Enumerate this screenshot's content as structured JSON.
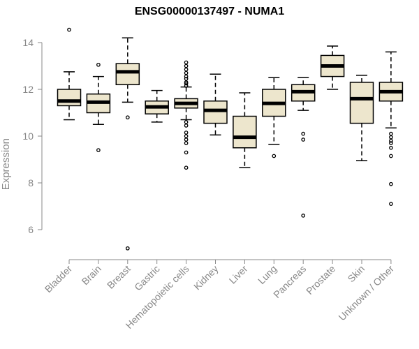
{
  "chart_data": {
    "type": "box",
    "title": "ENSG00000137497 - NUMA1",
    "xlabel": "",
    "ylabel": "Expression",
    "ylim": [
      5,
      14.7
    ],
    "yticks": [
      6,
      8,
      10,
      12,
      14
    ],
    "box_fill": "#ede6cd",
    "categories": [
      "Bladder",
      "Brain",
      "Breast",
      "Gastric",
      "Hematopoietic cells",
      "Kidney",
      "Liver",
      "Lung",
      "Pancreas",
      "Prostate",
      "Skin",
      "Unknown / Other"
    ],
    "boxes": [
      {
        "category": "Bladder",
        "whisker_low": 10.7,
        "q1": 11.3,
        "median": 11.5,
        "q3": 12.0,
        "whisker_high": 12.75,
        "outliers": [
          14.55
        ]
      },
      {
        "category": "Brain",
        "whisker_low": 10.5,
        "q1": 11.0,
        "median": 11.45,
        "q3": 11.8,
        "whisker_high": 12.55,
        "outliers": [
          13.05,
          9.4
        ]
      },
      {
        "category": "Breast",
        "whisker_low": 11.45,
        "q1": 12.2,
        "median": 12.75,
        "q3": 13.1,
        "whisker_high": 14.2,
        "outliers": [
          10.8,
          5.2
        ]
      },
      {
        "category": "Gastric",
        "whisker_low": 10.6,
        "q1": 10.95,
        "median": 11.25,
        "q3": 11.5,
        "whisker_high": 11.95,
        "outliers": []
      },
      {
        "category": "Hematopoietic cells",
        "whisker_low": 10.7,
        "q1": 11.2,
        "median": 11.4,
        "q3": 11.6,
        "whisker_high": 12.1,
        "outliers": [
          13.15,
          13.0,
          12.85,
          12.7,
          12.55,
          12.45,
          12.3,
          12.25,
          12.15,
          10.6,
          10.45,
          10.15,
          10.0,
          9.85,
          9.7,
          9.3,
          8.65
        ]
      },
      {
        "category": "Kidney",
        "whisker_low": 10.05,
        "q1": 10.55,
        "median": 11.1,
        "q3": 11.5,
        "whisker_high": 12.65,
        "outliers": []
      },
      {
        "category": "Liver",
        "whisker_low": 8.65,
        "q1": 9.5,
        "median": 9.95,
        "q3": 10.85,
        "whisker_high": 11.85,
        "outliers": []
      },
      {
        "category": "Lung",
        "whisker_low": 9.65,
        "q1": 10.85,
        "median": 11.4,
        "q3": 12.0,
        "whisker_high": 12.5,
        "outliers": [
          9.15
        ]
      },
      {
        "category": "Pancreas",
        "whisker_low": 11.1,
        "q1": 11.5,
        "median": 11.9,
        "q3": 12.2,
        "whisker_high": 12.5,
        "outliers": [
          10.1,
          9.85,
          6.6
        ]
      },
      {
        "category": "Prostate",
        "whisker_low": 12.0,
        "q1": 12.55,
        "median": 13.0,
        "q3": 13.45,
        "whisker_high": 13.85,
        "outliers": []
      },
      {
        "category": "Skin",
        "whisker_low": 8.95,
        "q1": 10.55,
        "median": 11.6,
        "q3": 12.3,
        "whisker_high": 12.6,
        "outliers": []
      },
      {
        "category": "Unknown / Other",
        "whisker_low": 10.35,
        "q1": 11.5,
        "median": 11.9,
        "q3": 12.3,
        "whisker_high": 13.6,
        "outliers": [
          10.1,
          9.95,
          9.8,
          9.7,
          9.5,
          9.15,
          7.95,
          7.1
        ]
      }
    ]
  }
}
